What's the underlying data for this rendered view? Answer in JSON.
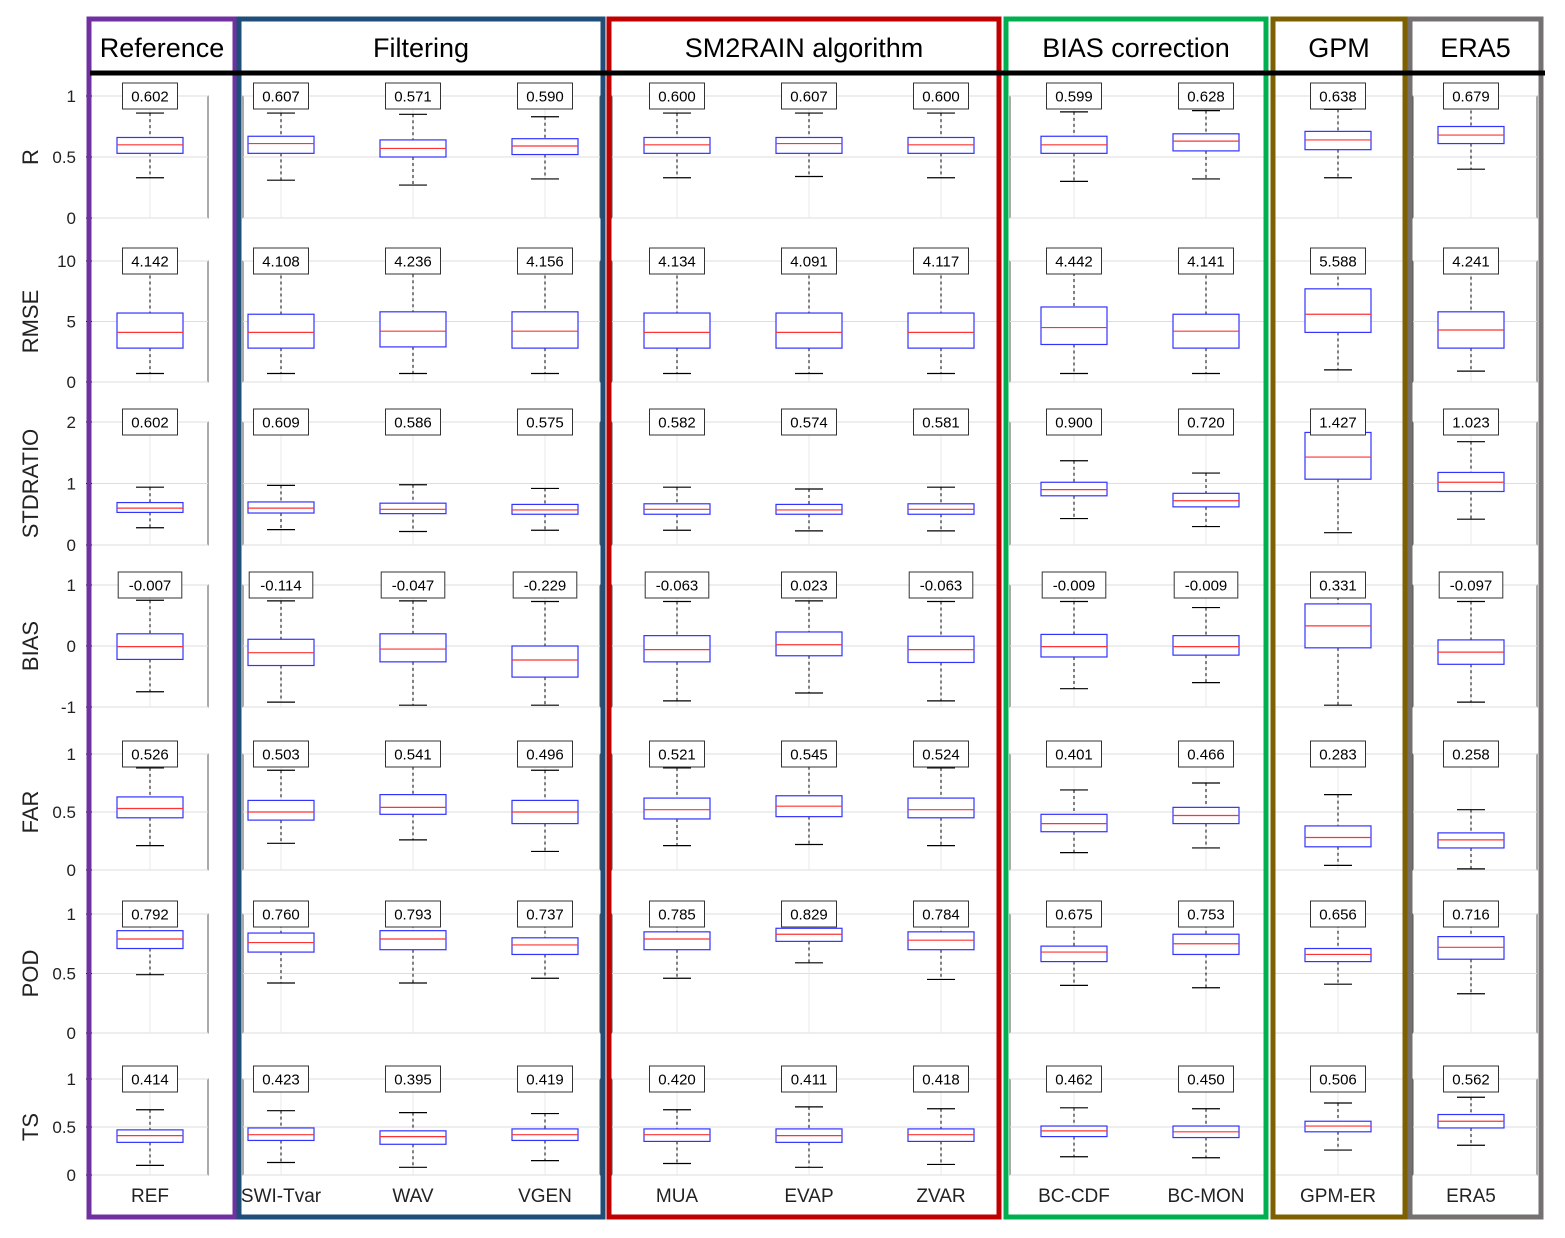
{
  "groups": [
    {
      "title": "Reference",
      "color": "#7030A0",
      "categories": [
        0
      ]
    },
    {
      "title": "Filtering",
      "color": "#1F4E79",
      "categories": [
        1,
        2,
        3
      ]
    },
    {
      "title": "SM2RAIN algorithm",
      "color": "#C00000",
      "categories": [
        4,
        5,
        6
      ]
    },
    {
      "title": "BIAS correction",
      "color": "#00B050",
      "categories": [
        7,
        8
      ]
    },
    {
      "title": "GPM",
      "color": "#7F6000",
      "categories": [
        9
      ]
    },
    {
      "title": "ERA5",
      "color": "#767171",
      "categories": [
        10
      ]
    }
  ],
  "colors": {
    "box": "#3333FF",
    "median": "#FF3333",
    "whisker": "#000000",
    "axis": "#000000"
  },
  "chart_data": {
    "type": "boxplot",
    "categories": [
      "REF",
      "SWI-Tvar",
      "WAV",
      "VGEN",
      "MUA",
      "EVAP",
      "ZVAR",
      "BC-CDF",
      "BC-MON",
      "GPM-ER",
      "ERA5"
    ],
    "panels": [
      {
        "metric": "R",
        "ylim": [
          0,
          1
        ],
        "yticks": [
          "0",
          "0.5",
          "1"
        ],
        "ytick_values": [
          0,
          0.5,
          1
        ],
        "median_labels": [
          "0.602",
          "0.607",
          "0.571",
          "0.590",
          "0.600",
          "0.607",
          "0.600",
          "0.599",
          "0.628",
          "0.638",
          "0.679"
        ],
        "boxes": [
          {
            "wlo": 0.33,
            "q1": 0.53,
            "med": 0.6,
            "q3": 0.66,
            "whi": 0.86
          },
          {
            "wlo": 0.31,
            "q1": 0.53,
            "med": 0.61,
            "q3": 0.67,
            "whi": 0.86
          },
          {
            "wlo": 0.27,
            "q1": 0.5,
            "med": 0.57,
            "q3": 0.64,
            "whi": 0.85
          },
          {
            "wlo": 0.32,
            "q1": 0.52,
            "med": 0.59,
            "q3": 0.65,
            "whi": 0.83
          },
          {
            "wlo": 0.33,
            "q1": 0.53,
            "med": 0.6,
            "q3": 0.66,
            "whi": 0.86
          },
          {
            "wlo": 0.34,
            "q1": 0.53,
            "med": 0.61,
            "q3": 0.66,
            "whi": 0.86
          },
          {
            "wlo": 0.33,
            "q1": 0.53,
            "med": 0.6,
            "q3": 0.66,
            "whi": 0.86
          },
          {
            "wlo": 0.3,
            "q1": 0.53,
            "med": 0.6,
            "q3": 0.67,
            "whi": 0.87
          },
          {
            "wlo": 0.32,
            "q1": 0.55,
            "med": 0.63,
            "q3": 0.69,
            "whi": 0.88
          },
          {
            "wlo": 0.33,
            "q1": 0.56,
            "med": 0.64,
            "q3": 0.71,
            "whi": 0.89
          },
          {
            "wlo": 0.4,
            "q1": 0.61,
            "med": 0.68,
            "q3": 0.75,
            "whi": 0.93
          }
        ]
      },
      {
        "metric": "RMSE",
        "ylim": [
          0,
          10
        ],
        "yticks": [
          "0",
          "5",
          "10"
        ],
        "ytick_values": [
          0,
          5,
          10
        ],
        "median_labels": [
          "4.142",
          "4.108",
          "4.236",
          "4.156",
          "4.134",
          "4.091",
          "4.117",
          "4.442",
          "4.141",
          "5.588",
          "4.241"
        ],
        "boxes": [
          {
            "wlo": 0.7,
            "q1": 2.8,
            "med": 4.1,
            "q3": 5.7,
            "whi": 9.3
          },
          {
            "wlo": 0.7,
            "q1": 2.8,
            "med": 4.1,
            "q3": 5.6,
            "whi": 9.3
          },
          {
            "wlo": 0.7,
            "q1": 2.9,
            "med": 4.2,
            "q3": 5.8,
            "whi": 9.4
          },
          {
            "wlo": 0.7,
            "q1": 2.8,
            "med": 4.2,
            "q3": 5.8,
            "whi": 9.3
          },
          {
            "wlo": 0.7,
            "q1": 2.8,
            "med": 4.1,
            "q3": 5.7,
            "whi": 9.3
          },
          {
            "wlo": 0.7,
            "q1": 2.8,
            "med": 4.1,
            "q3": 5.7,
            "whi": 9.3
          },
          {
            "wlo": 0.7,
            "q1": 2.8,
            "med": 4.1,
            "q3": 5.7,
            "whi": 9.3
          },
          {
            "wlo": 0.7,
            "q1": 3.1,
            "med": 4.5,
            "q3": 6.2,
            "whi": 9.5
          },
          {
            "wlo": 0.7,
            "q1": 2.8,
            "med": 4.2,
            "q3": 5.6,
            "whi": 9.3
          },
          {
            "wlo": 1.0,
            "q1": 4.1,
            "med": 5.6,
            "q3": 7.7,
            "whi": 9.7
          },
          {
            "wlo": 0.9,
            "q1": 2.8,
            "med": 4.3,
            "q3": 5.8,
            "whi": 9.2
          }
        ]
      },
      {
        "metric": "STDRATIO",
        "ylim": [
          0,
          2
        ],
        "yticks": [
          "0",
          "1",
          "2"
        ],
        "ytick_values": [
          0,
          1,
          2
        ],
        "median_labels": [
          "0.602",
          "0.609",
          "0.586",
          "0.575",
          "0.582",
          "0.574",
          "0.581",
          "0.900",
          "0.720",
          "1.427",
          "1.023"
        ],
        "boxes": [
          {
            "wlo": 0.28,
            "q1": 0.53,
            "med": 0.6,
            "q3": 0.69,
            "whi": 0.94
          },
          {
            "wlo": 0.25,
            "q1": 0.52,
            "med": 0.6,
            "q3": 0.7,
            "whi": 0.97
          },
          {
            "wlo": 0.22,
            "q1": 0.51,
            "med": 0.58,
            "q3": 0.68,
            "whi": 0.98
          },
          {
            "wlo": 0.24,
            "q1": 0.5,
            "med": 0.57,
            "q3": 0.66,
            "whi": 0.92
          },
          {
            "wlo": 0.24,
            "q1": 0.5,
            "med": 0.58,
            "q3": 0.67,
            "whi": 0.94
          },
          {
            "wlo": 0.23,
            "q1": 0.5,
            "med": 0.57,
            "q3": 0.66,
            "whi": 0.91
          },
          {
            "wlo": 0.23,
            "q1": 0.5,
            "med": 0.58,
            "q3": 0.67,
            "whi": 0.94
          },
          {
            "wlo": 0.43,
            "q1": 0.8,
            "med": 0.9,
            "q3": 1.02,
            "whi": 1.37
          },
          {
            "wlo": 0.3,
            "q1": 0.62,
            "med": 0.72,
            "q3": 0.84,
            "whi": 1.17
          },
          {
            "wlo": 0.2,
            "q1": 1.07,
            "med": 1.43,
            "q3": 1.83,
            "whi": 2.0
          },
          {
            "wlo": 0.42,
            "q1": 0.87,
            "med": 1.02,
            "q3": 1.18,
            "whi": 1.68
          }
        ]
      },
      {
        "metric": "BIAS",
        "ylim": [
          -1,
          1
        ],
        "yticks": [
          "-1",
          "0",
          "1"
        ],
        "ytick_values": [
          -1,
          0,
          1
        ],
        "median_labels": [
          "-0.007",
          "-0.114",
          "-0.047",
          "-0.229",
          "-0.063",
          "0.023",
          "-0.063",
          "-0.009",
          "-0.009",
          "0.331",
          "-0.097"
        ],
        "boxes": [
          {
            "wlo": -0.75,
            "q1": -0.22,
            "med": -0.01,
            "q3": 0.2,
            "whi": 0.75
          },
          {
            "wlo": -0.92,
            "q1": -0.32,
            "med": -0.11,
            "q3": 0.11,
            "whi": 0.74
          },
          {
            "wlo": -0.97,
            "q1": -0.26,
            "med": -0.05,
            "q3": 0.2,
            "whi": 0.74
          },
          {
            "wlo": -0.97,
            "q1": -0.51,
            "med": -0.23,
            "q3": 0.0,
            "whi": 0.73
          },
          {
            "wlo": -0.9,
            "q1": -0.26,
            "med": -0.06,
            "q3": 0.17,
            "whi": 0.73
          },
          {
            "wlo": -0.77,
            "q1": -0.16,
            "med": 0.02,
            "q3": 0.23,
            "whi": 0.74
          },
          {
            "wlo": -0.9,
            "q1": -0.27,
            "med": -0.06,
            "q3": 0.16,
            "whi": 0.73
          },
          {
            "wlo": -0.7,
            "q1": -0.18,
            "med": -0.01,
            "q3": 0.19,
            "whi": 0.73
          },
          {
            "wlo": -0.6,
            "q1": -0.15,
            "med": -0.01,
            "q3": 0.17,
            "whi": 0.63
          },
          {
            "wlo": -0.97,
            "q1": -0.03,
            "med": 0.33,
            "q3": 0.69,
            "whi": 1.0
          },
          {
            "wlo": -0.92,
            "q1": -0.3,
            "med": -0.1,
            "q3": 0.1,
            "whi": 0.73
          }
        ]
      },
      {
        "metric": "FAR",
        "ylim": [
          0,
          1
        ],
        "yticks": [
          "0",
          "0.5",
          "1"
        ],
        "ytick_values": [
          0,
          0.5,
          1
        ],
        "median_labels": [
          "0.526",
          "0.503",
          "0.541",
          "0.496",
          "0.521",
          "0.545",
          "0.524",
          "0.401",
          "0.466",
          "0.283",
          "0.258"
        ],
        "boxes": [
          {
            "wlo": 0.21,
            "q1": 0.45,
            "med": 0.53,
            "q3": 0.63,
            "whi": 0.88
          },
          {
            "wlo": 0.23,
            "q1": 0.43,
            "med": 0.5,
            "q3": 0.6,
            "whi": 0.86
          },
          {
            "wlo": 0.26,
            "q1": 0.48,
            "med": 0.54,
            "q3": 0.65,
            "whi": 0.89
          },
          {
            "wlo": 0.16,
            "q1": 0.4,
            "med": 0.5,
            "q3": 0.6,
            "whi": 0.86
          },
          {
            "wlo": 0.21,
            "q1": 0.44,
            "med": 0.52,
            "q3": 0.62,
            "whi": 0.88
          },
          {
            "wlo": 0.22,
            "q1": 0.46,
            "med": 0.55,
            "q3": 0.64,
            "whi": 0.89
          },
          {
            "wlo": 0.21,
            "q1": 0.45,
            "med": 0.52,
            "q3": 0.62,
            "whi": 0.88
          },
          {
            "wlo": 0.15,
            "q1": 0.33,
            "med": 0.4,
            "q3": 0.48,
            "whi": 0.69
          },
          {
            "wlo": 0.19,
            "q1": 0.4,
            "med": 0.47,
            "q3": 0.54,
            "whi": 0.75
          },
          {
            "wlo": 0.04,
            "q1": 0.2,
            "med": 0.28,
            "q3": 0.38,
            "whi": 0.65
          },
          {
            "wlo": 0.01,
            "q1": 0.19,
            "med": 0.26,
            "q3": 0.32,
            "whi": 0.52
          }
        ]
      },
      {
        "metric": "POD",
        "ylim": [
          0,
          1
        ],
        "yticks": [
          "0",
          "0.5",
          "1"
        ],
        "ytick_values": [
          0,
          0.5,
          1
        ],
        "median_labels": [
          "0.792",
          "0.760",
          "0.793",
          "0.737",
          "0.785",
          "0.829",
          "0.784",
          "0.675",
          "0.753",
          "0.656",
          "0.716"
        ],
        "boxes": [
          {
            "wlo": 0.49,
            "q1": 0.71,
            "med": 0.79,
            "q3": 0.86,
            "whi": 0.96
          },
          {
            "wlo": 0.42,
            "q1": 0.68,
            "med": 0.76,
            "q3": 0.84,
            "whi": 0.96
          },
          {
            "wlo": 0.42,
            "q1": 0.7,
            "med": 0.79,
            "q3": 0.86,
            "whi": 0.96
          },
          {
            "wlo": 0.46,
            "q1": 0.66,
            "med": 0.74,
            "q3": 0.8,
            "whi": 0.96
          },
          {
            "wlo": 0.46,
            "q1": 0.7,
            "med": 0.79,
            "q3": 0.85,
            "whi": 0.96
          },
          {
            "wlo": 0.59,
            "q1": 0.77,
            "med": 0.83,
            "q3": 0.88,
            "whi": 0.97
          },
          {
            "wlo": 0.45,
            "q1": 0.7,
            "med": 0.78,
            "q3": 0.85,
            "whi": 0.96
          },
          {
            "wlo": 0.4,
            "q1": 0.6,
            "med": 0.68,
            "q3": 0.73,
            "whi": 0.96
          },
          {
            "wlo": 0.38,
            "q1": 0.66,
            "med": 0.75,
            "q3": 0.83,
            "whi": 0.96
          },
          {
            "wlo": 0.41,
            "q1": 0.6,
            "med": 0.66,
            "q3": 0.71,
            "whi": 0.96
          },
          {
            "wlo": 0.33,
            "q1": 0.62,
            "med": 0.72,
            "q3": 0.81,
            "whi": 0.96
          }
        ]
      },
      {
        "metric": "TS",
        "ylim": [
          0,
          1
        ],
        "yticks": [
          "0",
          "0.5",
          "1"
        ],
        "ytick_values": [
          0,
          0.5,
          1
        ],
        "median_labels": [
          "0.414",
          "0.423",
          "0.395",
          "0.419",
          "0.420",
          "0.411",
          "0.418",
          "0.462",
          "0.450",
          "0.506",
          "0.562"
        ],
        "boxes": [
          {
            "wlo": 0.1,
            "q1": 0.34,
            "med": 0.41,
            "q3": 0.47,
            "whi": 0.68
          },
          {
            "wlo": 0.13,
            "q1": 0.36,
            "med": 0.42,
            "q3": 0.49,
            "whi": 0.67
          },
          {
            "wlo": 0.08,
            "q1": 0.32,
            "med": 0.4,
            "q3": 0.46,
            "whi": 0.65
          },
          {
            "wlo": 0.15,
            "q1": 0.36,
            "med": 0.42,
            "q3": 0.48,
            "whi": 0.64
          },
          {
            "wlo": 0.12,
            "q1": 0.35,
            "med": 0.42,
            "q3": 0.48,
            "whi": 0.68
          },
          {
            "wlo": 0.08,
            "q1": 0.34,
            "med": 0.41,
            "q3": 0.48,
            "whi": 0.71
          },
          {
            "wlo": 0.11,
            "q1": 0.35,
            "med": 0.42,
            "q3": 0.48,
            "whi": 0.69
          },
          {
            "wlo": 0.19,
            "q1": 0.4,
            "med": 0.46,
            "q3": 0.51,
            "whi": 0.7
          },
          {
            "wlo": 0.18,
            "q1": 0.39,
            "med": 0.45,
            "q3": 0.51,
            "whi": 0.69
          },
          {
            "wlo": 0.26,
            "q1": 0.45,
            "med": 0.51,
            "q3": 0.56,
            "whi": 0.75
          },
          {
            "wlo": 0.31,
            "q1": 0.49,
            "med": 0.56,
            "q3": 0.63,
            "whi": 0.81
          }
        ]
      }
    ]
  }
}
